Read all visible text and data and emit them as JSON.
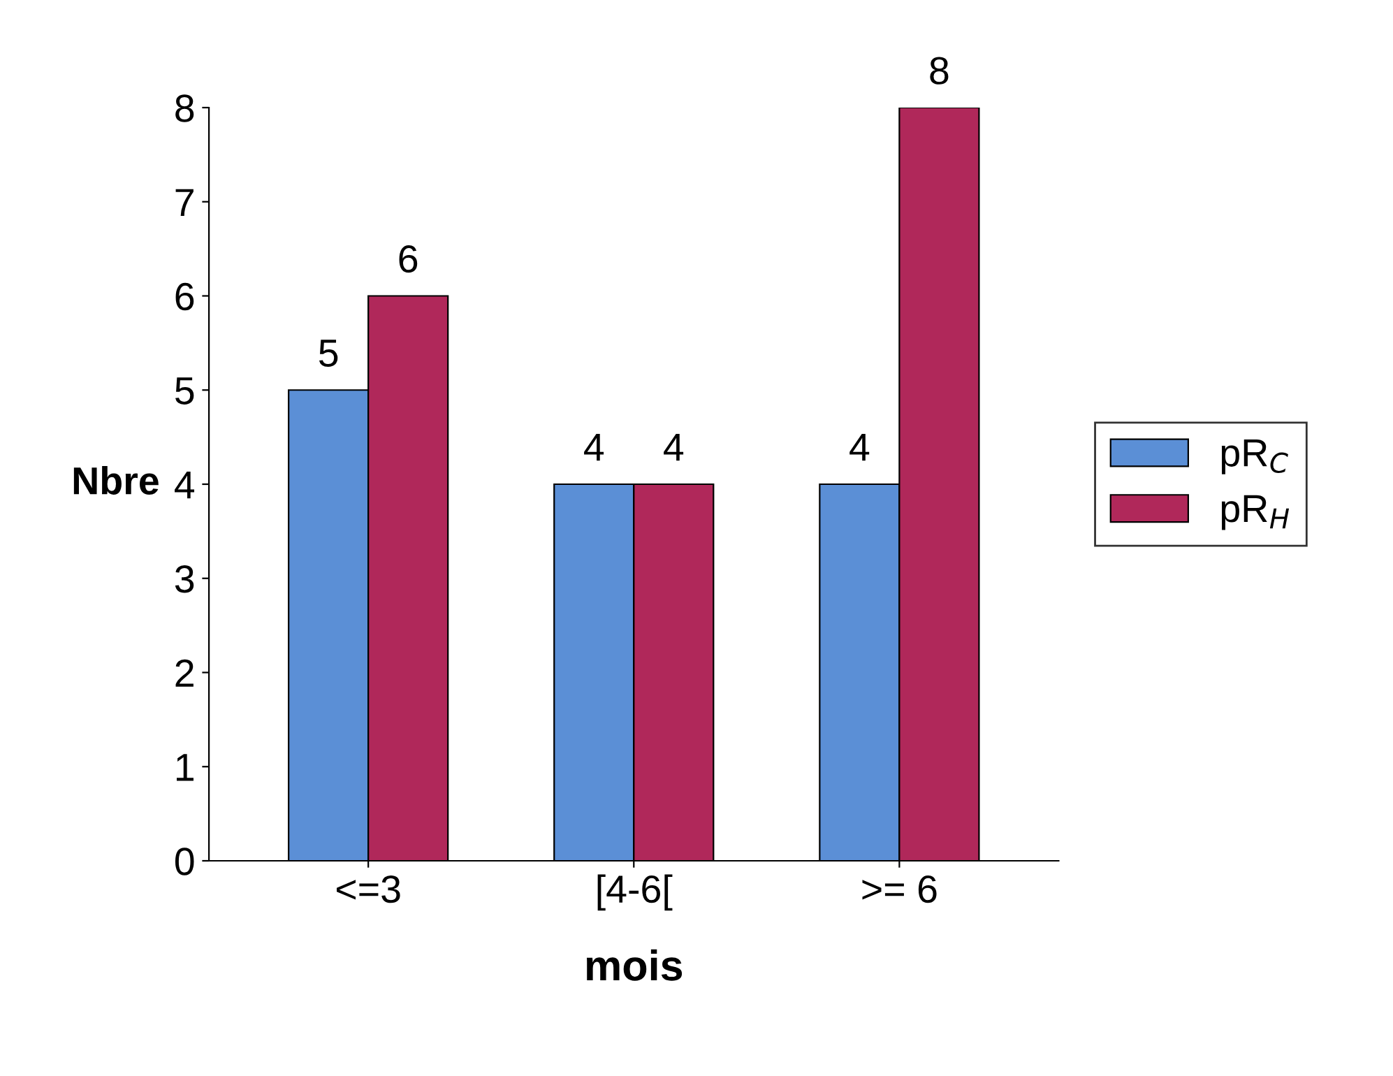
{
  "chart_data": {
    "type": "bar",
    "xlabel": "mois",
    "ylabel": "Nbre",
    "categories": [
      "<=3",
      "[4-6[",
      ">= 6"
    ],
    "series": [
      {
        "name": "pR$_{C}$",
        "color": "#5b8fd6",
        "values": [
          5,
          4,
          4
        ]
      },
      {
        "name": "pR$_{H}$",
        "color": "#b0285a",
        "values": [
          6,
          4,
          8
        ]
      }
    ],
    "ylim": [
      0,
      8
    ],
    "yticks": [
      0,
      1,
      2,
      3,
      4,
      5,
      6,
      7,
      8
    ],
    "data_labels": true,
    "legend": "right",
    "grid": false
  }
}
